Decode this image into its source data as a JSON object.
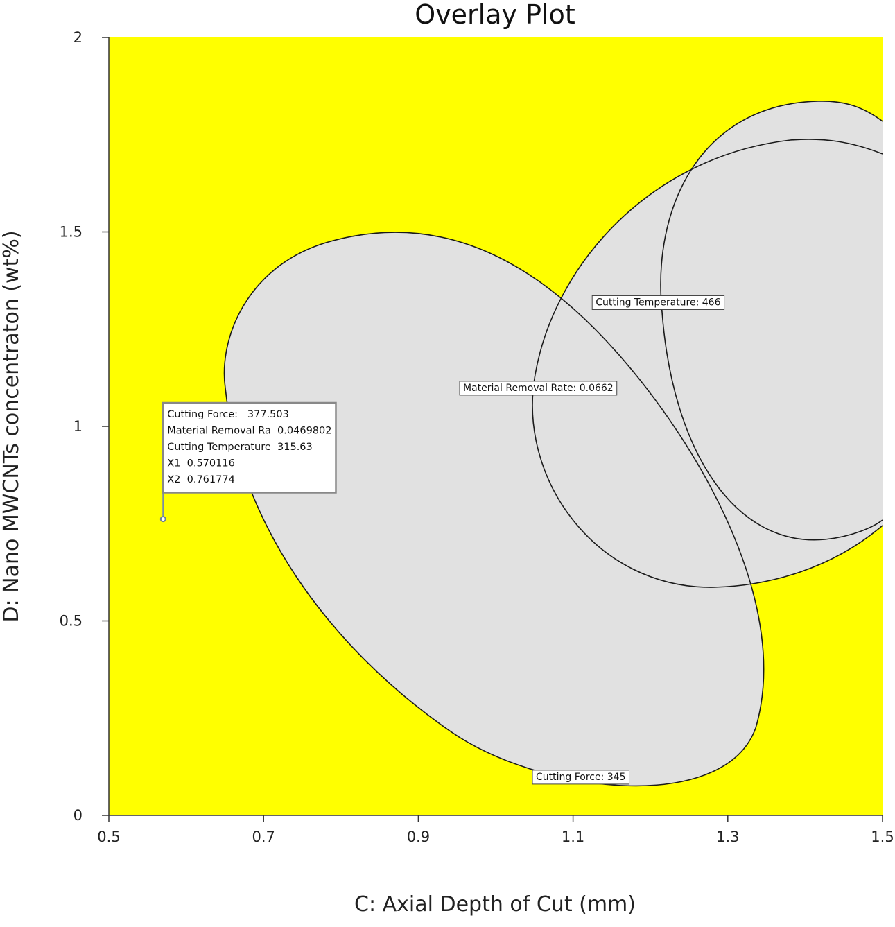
{
  "chart_data": {
    "type": "contour-overlay",
    "title": "Overlay Plot",
    "xlabel": "C: Axial Depth of Cut (mm)",
    "ylabel": "D: Nano MWCNTs concentraton (wt%)",
    "xlim": [
      0.5,
      1.5
    ],
    "ylim": [
      0,
      2
    ],
    "x_ticks": [
      "0.5",
      "0.7",
      "0.9",
      "1.1",
      "1.3",
      "1.5"
    ],
    "y_ticks": [
      "0",
      "0.5",
      "1",
      "1.5",
      "2"
    ],
    "colors": {
      "feasible_region": "#ffff00",
      "excluded_region": "#e1e1e1",
      "contour_line": "#1a1a1a",
      "axis": "#333333"
    },
    "contour_labels": [
      {
        "text": "Cutting Temperature: 466",
        "x": 1.21,
        "y": 1.32
      },
      {
        "text": "Material Removal Rate: 0.0662",
        "x": 1.055,
        "y": 1.1
      },
      {
        "text": "Cutting Force: 345",
        "x": 1.11,
        "y": 0.1
      }
    ],
    "flag": {
      "point": {
        "x": 0.570116,
        "y": 0.761774
      },
      "lines": [
        "Cutting Force:   377.503",
        "Material Removal Ra  0.0469802",
        "Cutting Temperature  315.63",
        "X1  0.570116",
        "X2  0.761774"
      ]
    }
  }
}
